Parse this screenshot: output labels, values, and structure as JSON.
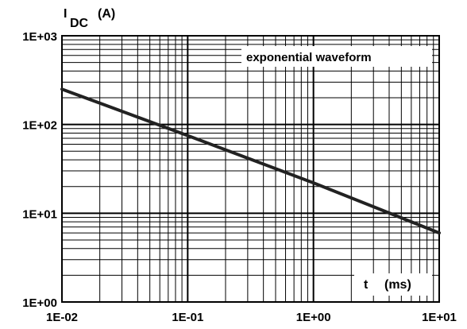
{
  "chart_data": {
    "type": "line",
    "x_scale": "log",
    "y_scale": "log",
    "xlim": [
      0.01,
      10
    ],
    "ylim": [
      1,
      1000
    ],
    "grid": true,
    "x_tick_labels": [
      "1E-02",
      "1E-01",
      "1E+00",
      "1E+01"
    ],
    "y_tick_labels": [
      "1E+00",
      "1E+01",
      "1E+02",
      "1E+03"
    ],
    "ylabel_main": "I",
    "ylabel_sub": "DC",
    "ylabel_unit": "(A)",
    "xlabel": "t",
    "xlabel_unit": "(ms)",
    "annotation": "exponential waveform",
    "series": [
      {
        "x": [
          0.01,
          0.1,
          1,
          10
        ],
        "y": [
          250,
          75,
          22,
          6
        ]
      }
    ],
    "line_color": "#222222"
  }
}
